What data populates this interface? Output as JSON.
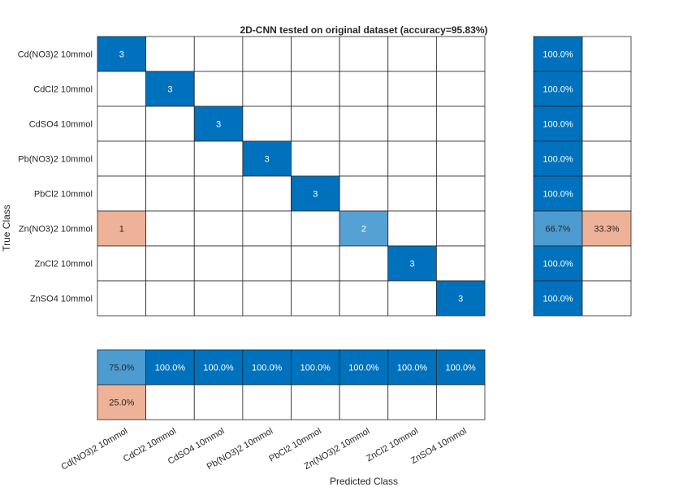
{
  "chart_data": {
    "type": "heatmap",
    "title": "2D-CNN tested on original dataset (accuracy=95.83%)",
    "xlabel": "Predicted Class",
    "ylabel": "True Class",
    "classes": [
      "Cd(NO3)2 10mmol",
      "CdCl2 10mmol",
      "CdSO4 10mmol",
      "Pb(NO3)2 10mmol",
      "PbCl2 10mmol",
      "Zn(NO3)2 10mmol",
      "ZnCl2 10mmol",
      "ZnSO4 10mmol"
    ],
    "matrix": [
      [
        3,
        0,
        0,
        0,
        0,
        0,
        0,
        0
      ],
      [
        0,
        3,
        0,
        0,
        0,
        0,
        0,
        0
      ],
      [
        0,
        0,
        3,
        0,
        0,
        0,
        0,
        0
      ],
      [
        0,
        0,
        0,
        3,
        0,
        0,
        0,
        0
      ],
      [
        0,
        0,
        0,
        0,
        3,
        0,
        0,
        0
      ],
      [
        1,
        0,
        0,
        0,
        0,
        2,
        0,
        0
      ],
      [
        0,
        0,
        0,
        0,
        0,
        0,
        3,
        0
      ],
      [
        0,
        0,
        0,
        0,
        0,
        0,
        0,
        3
      ]
    ],
    "row_summary": [
      [
        "100.0%",
        ""
      ],
      [
        "100.0%",
        ""
      ],
      [
        "100.0%",
        ""
      ],
      [
        "100.0%",
        ""
      ],
      [
        "100.0%",
        ""
      ],
      [
        "66.7%",
        "33.3%"
      ],
      [
        "100.0%",
        ""
      ],
      [
        "100.0%",
        ""
      ]
    ],
    "row_summary_values": [
      [
        100,
        0
      ],
      [
        100,
        0
      ],
      [
        100,
        0
      ],
      [
        100,
        0
      ],
      [
        100,
        0
      ],
      [
        66.7,
        33.3
      ],
      [
        100,
        0
      ],
      [
        100,
        0
      ]
    ],
    "col_summary": [
      [
        "75.0%",
        "100.0%",
        "100.0%",
        "100.0%",
        "100.0%",
        "100.0%",
        "100.0%",
        "100.0%"
      ],
      [
        "25.0%",
        "",
        "",
        "",
        "",
        "",
        "",
        ""
      ]
    ],
    "col_summary_values": [
      [
        75.0,
        100,
        100,
        100,
        100,
        100,
        100,
        100
      ],
      [
        25.0,
        0,
        0,
        0,
        0,
        0,
        0,
        0
      ]
    ],
    "colors": {
      "correct": "#0072BD",
      "incorrect": "#D95319",
      "grid": "#262626",
      "text_light": "#ffffff",
      "text_dark": "#262626"
    }
  }
}
